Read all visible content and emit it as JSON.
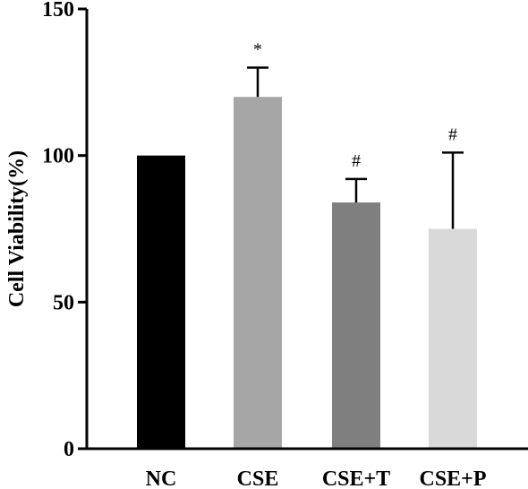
{
  "chart_data": {
    "type": "bar",
    "title": "",
    "xlabel": "",
    "ylabel": "Cell Viability(%)",
    "ylim": [
      0,
      150
    ],
    "yticks": [
      0,
      50,
      100,
      150
    ],
    "grid": false,
    "categories": [
      "NC",
      "CSE",
      "CSE+T",
      "CSE+P"
    ],
    "values": [
      100,
      120,
      84,
      75
    ],
    "error_upper": [
      0,
      10,
      8,
      26
    ],
    "annotations": [
      "",
      "*",
      "#",
      "#"
    ],
    "colors": [
      "#000000",
      "#a6a6a6",
      "#7f7f7f",
      "#d9d9d9"
    ]
  }
}
